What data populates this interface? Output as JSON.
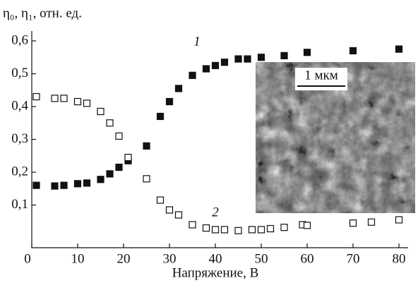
{
  "chart_data": {
    "type": "scatter",
    "y_label": "η₀, η₁, отн. ед.",
    "x_label": "Напряжение, В",
    "annotations": [
      "1",
      "2"
    ],
    "inset_label": "1 мкм",
    "xlim": [
      0,
      82
    ],
    "ylim": [
      -0.03,
      0.63
    ],
    "xticks": [
      0,
      10,
      20,
      30,
      40,
      50,
      60,
      70,
      80
    ],
    "yticks": [
      {
        "value": 0.1,
        "label": "0,1"
      },
      {
        "value": 0.2,
        "label": "0,2"
      },
      {
        "value": 0.3,
        "label": "0,3"
      },
      {
        "value": 0.4,
        "label": "0,4"
      },
      {
        "value": 0.5,
        "label": "0,5"
      },
      {
        "value": 0.6,
        "label": "0,6"
      }
    ],
    "series": [
      {
        "color": "#111111",
        "filled": true,
        "x": [
          1,
          5,
          7,
          10,
          12,
          15,
          17,
          19,
          21,
          25,
          28,
          30,
          32,
          35,
          38,
          40,
          42,
          45,
          47,
          50,
          55,
          60,
          70,
          80
        ],
        "values": [
          0.16,
          0.158,
          0.16,
          0.165,
          0.167,
          0.178,
          0.195,
          0.215,
          0.235,
          0.28,
          0.37,
          0.415,
          0.455,
          0.495,
          0.515,
          0.525,
          0.535,
          0.545,
          0.545,
          0.55,
          0.555,
          0.565,
          0.57,
          0.575
        ]
      },
      {
        "color": "#111111",
        "filled": false,
        "x": [
          1,
          5,
          7,
          10,
          12,
          15,
          17,
          19,
          21,
          25,
          28,
          30,
          32,
          35,
          38,
          40,
          42,
          45,
          48,
          50,
          52,
          55,
          59,
          60,
          70,
          74,
          80
        ],
        "values": [
          0.43,
          0.425,
          0.425,
          0.415,
          0.41,
          0.385,
          0.35,
          0.31,
          0.245,
          0.18,
          0.115,
          0.085,
          0.07,
          0.04,
          0.03,
          0.025,
          0.025,
          0.022,
          0.025,
          0.025,
          0.028,
          0.032,
          0.04,
          0.038,
          0.045,
          0.048,
          0.055
        ]
      }
    ]
  }
}
